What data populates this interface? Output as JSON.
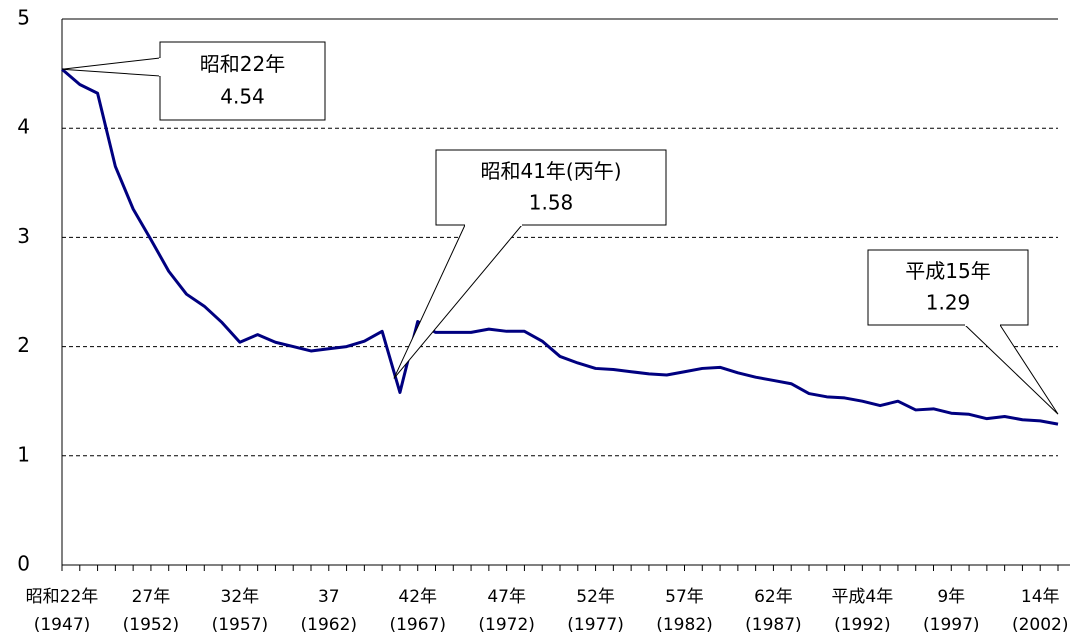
{
  "chart_data": {
    "type": "line",
    "x": [
      1947,
      1948,
      1949,
      1950,
      1951,
      1952,
      1953,
      1954,
      1955,
      1956,
      1957,
      1958,
      1959,
      1960,
      1961,
      1962,
      1963,
      1964,
      1965,
      1966,
      1967,
      1968,
      1969,
      1970,
      1971,
      1972,
      1973,
      1974,
      1975,
      1976,
      1977,
      1978,
      1979,
      1980,
      1981,
      1982,
      1983,
      1984,
      1985,
      1986,
      1987,
      1988,
      1989,
      1990,
      1991,
      1992,
      1993,
      1994,
      1995,
      1996,
      1997,
      1998,
      1999,
      2000,
      2001,
      2002,
      2003
    ],
    "series": [
      {
        "name": null,
        "color": "#000080",
        "values": [
          4.54,
          4.4,
          4.32,
          3.65,
          3.26,
          2.98,
          2.69,
          2.48,
          2.37,
          2.22,
          2.04,
          2.11,
          2.04,
          2.0,
          1.96,
          1.98,
          2.0,
          2.05,
          2.14,
          1.58,
          2.23,
          2.13,
          2.13,
          2.13,
          2.16,
          2.14,
          2.14,
          2.05,
          1.91,
          1.85,
          1.8,
          1.79,
          1.77,
          1.75,
          1.74,
          1.77,
          1.8,
          1.81,
          1.76,
          1.72,
          1.69,
          1.66,
          1.57,
          1.54,
          1.53,
          1.5,
          1.46,
          1.5,
          1.42,
          1.43,
          1.39,
          1.38,
          1.34,
          1.36,
          1.33,
          1.32,
          1.29
        ]
      }
    ],
    "xlim": [
      1947,
      2003
    ],
    "xticks": [
      {
        "value": 1947,
        "label": "昭和22年",
        "year_label": "(1947)"
      },
      {
        "value": 1952,
        "label": "27年",
        "year_label": "(1952)"
      },
      {
        "value": 1957,
        "label": "32年",
        "year_label": "(1957)"
      },
      {
        "value": 1962,
        "label": "37",
        "year_label": "(1962)"
      },
      {
        "value": 1967,
        "label": "42年",
        "year_label": "(1967)"
      },
      {
        "value": 1972,
        "label": "47年",
        "year_label": "(1972)"
      },
      {
        "value": 1977,
        "label": "52年",
        "year_label": "(1977)"
      },
      {
        "value": 1982,
        "label": "57年",
        "year_label": "(1982)"
      },
      {
        "value": 1987,
        "label": "62年",
        "year_label": "(1987)"
      },
      {
        "value": 1992,
        "label": "平成4年",
        "year_label": "(1992)"
      },
      {
        "value": 1997,
        "label": "9年",
        "year_label": "(1997)"
      },
      {
        "value": 2002,
        "label": "14年",
        "year_label": "(2002)"
      }
    ],
    "ylim": [
      0,
      5
    ],
    "yticks": [
      0,
      1,
      2,
      3,
      4,
      5
    ],
    "grid": true,
    "annotations": [
      {
        "label": "昭和22年",
        "value": 4.54
      },
      {
        "label": "昭和41年(丙午)",
        "value": 1.58
      },
      {
        "label": "平成15年",
        "value": 1.29
      }
    ]
  }
}
